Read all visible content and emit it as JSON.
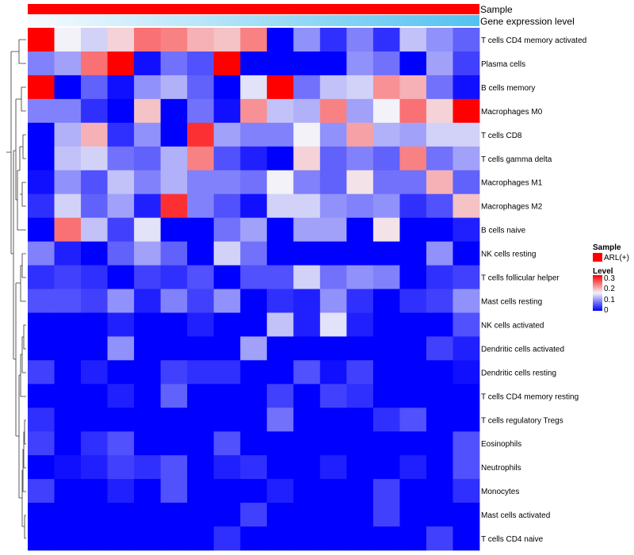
{
  "chart_data": {
    "type": "heatmap",
    "title": "",
    "annotation_tracks": [
      {
        "name": "Sample",
        "kind": "categorical",
        "values_color": "#ff0000"
      },
      {
        "name": "Gene expression level",
        "kind": "gradient",
        "from_color": "#f7fbff",
        "to_color": "#53c2f0"
      }
    ],
    "n_columns": 17,
    "rows": [
      "T cells CD4 memory activated",
      "Plasma cells",
      "B cells memory",
      "Macrophages M0",
      "T cells CD8",
      "T cells gamma delta",
      "Macrophages M1",
      "Macrophages M2",
      "B cells naive",
      "NK cells resting",
      "T cells follicular helper",
      "Mast cells resting",
      "NK cells activated",
      "Dendritic cells activated",
      "Dendritic cells resting",
      "T cells CD4 memory resting",
      "T cells regulatory  Tregs",
      "Eosinophils",
      "Neutrophils",
      "Monocytes",
      "Mast cells activated",
      "T cells CD4 naive"
    ],
    "values": [
      [
        0.3,
        0.15,
        0.13,
        0.17,
        0.23,
        0.22,
        0.19,
        0.18,
        0.22,
        0.0,
        0.09,
        0.03,
        0.08,
        0.03,
        0.12,
        0.09,
        0.06
      ],
      [
        0.08,
        0.1,
        0.23,
        0.3,
        0.01,
        0.07,
        0.05,
        0.3,
        0.0,
        0.0,
        0.0,
        0.0,
        0.09,
        0.07,
        0.0,
        0.1,
        0.04
      ],
      [
        0.3,
        0.0,
        0.06,
        0.01,
        0.09,
        0.11,
        0.06,
        0.0,
        0.14,
        0.3,
        0.07,
        0.12,
        0.13,
        0.21,
        0.19,
        0.07,
        0.01
      ],
      [
        0.08,
        0.08,
        0.03,
        0.0,
        0.18,
        0.0,
        0.07,
        0.01,
        0.21,
        0.12,
        0.11,
        0.22,
        0.1,
        0.15,
        0.23,
        0.17,
        0.3
      ],
      [
        0.0,
        0.11,
        0.19,
        0.03,
        0.09,
        0.0,
        0.27,
        0.1,
        0.08,
        0.08,
        0.15,
        0.09,
        0.2,
        0.11,
        0.1,
        0.13,
        0.13
      ],
      [
        0.0,
        0.12,
        0.13,
        0.07,
        0.06,
        0.11,
        0.22,
        0.05,
        0.02,
        0.0,
        0.17,
        0.06,
        0.08,
        0.06,
        0.22,
        0.07,
        0.1
      ],
      [
        0.01,
        0.09,
        0.05,
        0.12,
        0.08,
        0.11,
        0.08,
        0.08,
        0.07,
        0.15,
        0.08,
        0.06,
        0.16,
        0.07,
        0.07,
        0.19,
        0.06
      ],
      [
        0.03,
        0.13,
        0.06,
        0.1,
        0.02,
        0.27,
        0.08,
        0.05,
        0.01,
        0.13,
        0.13,
        0.09,
        0.08,
        0.09,
        0.03,
        0.05,
        0.18
      ],
      [
        0.0,
        0.23,
        0.12,
        0.04,
        0.14,
        0.0,
        0.0,
        0.07,
        0.1,
        0.0,
        0.1,
        0.1,
        0.0,
        0.16,
        0.0,
        0.0,
        0.02
      ],
      [
        0.08,
        0.02,
        0.0,
        0.06,
        0.1,
        0.06,
        0.0,
        0.13,
        0.07,
        0.0,
        0.0,
        0.0,
        0.0,
        0.0,
        0.0,
        0.09,
        0.0
      ],
      [
        0.03,
        0.04,
        0.03,
        0.0,
        0.04,
        0.03,
        0.05,
        0.0,
        0.05,
        0.05,
        0.13,
        0.07,
        0.09,
        0.08,
        0.0,
        0.03,
        0.04
      ],
      [
        0.05,
        0.05,
        0.04,
        0.09,
        0.02,
        0.08,
        0.04,
        0.09,
        0.0,
        0.03,
        0.02,
        0.09,
        0.03,
        0.0,
        0.03,
        0.04,
        0.09
      ],
      [
        0.0,
        0.0,
        0.0,
        0.02,
        0.0,
        0.0,
        0.02,
        0.0,
        0.0,
        0.12,
        0.02,
        0.14,
        0.02,
        0.0,
        0.0,
        0.0,
        0.05
      ],
      [
        0.0,
        0.0,
        0.0,
        0.09,
        0.0,
        0.0,
        0.0,
        0.0,
        0.1,
        0.0,
        0.0,
        0.0,
        0.0,
        0.0,
        0.0,
        0.04,
        0.02
      ],
      [
        0.04,
        0.0,
        0.02,
        0.0,
        0.0,
        0.04,
        0.03,
        0.03,
        0.0,
        0.0,
        0.05,
        0.01,
        0.04,
        0.0,
        0.0,
        0.0,
        0.01
      ],
      [
        0.0,
        0.0,
        0.0,
        0.02,
        0.0,
        0.06,
        0.0,
        0.0,
        0.0,
        0.04,
        0.0,
        0.04,
        0.03,
        0.0,
        0.0,
        0.0,
        0.0
      ],
      [
        0.03,
        0.0,
        0.0,
        0.0,
        0.0,
        0.0,
        0.0,
        0.0,
        0.0,
        0.07,
        0.0,
        0.0,
        0.0,
        0.03,
        0.05,
        0.0,
        0.0
      ],
      [
        0.04,
        0.0,
        0.03,
        0.05,
        0.0,
        0.0,
        0.0,
        0.05,
        0.0,
        0.0,
        0.0,
        0.0,
        0.0,
        0.0,
        0.0,
        0.0,
        0.05
      ],
      [
        0.0,
        0.01,
        0.02,
        0.04,
        0.03,
        0.05,
        0.0,
        0.02,
        0.03,
        0.0,
        0.0,
        0.02,
        0.0,
        0.0,
        0.02,
        0.0,
        0.05
      ],
      [
        0.04,
        0.0,
        0.0,
        0.02,
        0.0,
        0.05,
        0.0,
        0.0,
        0.0,
        0.02,
        0.0,
        0.0,
        0.0,
        0.04,
        0.0,
        0.0,
        0.03
      ],
      [
        0.0,
        0.0,
        0.0,
        0.0,
        0.0,
        0.0,
        0.0,
        0.0,
        0.04,
        0.0,
        0.0,
        0.0,
        0.0,
        0.04,
        0.0,
        0.0,
        0.0
      ],
      [
        0.0,
        0.0,
        0.0,
        0.0,
        0.0,
        0.0,
        0.0,
        0.03,
        0.0,
        0.0,
        0.0,
        0.0,
        0.0,
        0.0,
        0.0,
        0.04,
        0.0
      ]
    ],
    "color_scale": {
      "min": 0,
      "max": 0.3,
      "stops": [
        {
          "value": 0,
          "color": "#0000ff"
        },
        {
          "value": 0.15,
          "color": "#f2f2f8"
        },
        {
          "value": 0.3,
          "color": "#ff0000"
        }
      ]
    },
    "row_dendrogram": true
  },
  "legend": {
    "sample": {
      "title": "Sample",
      "items": [
        {
          "label": "ARL(+)",
          "color": "#ff0000"
        }
      ]
    },
    "level": {
      "title": "Level",
      "ticks": [
        "0.3",
        "0.2",
        "0.1",
        "0"
      ]
    }
  }
}
